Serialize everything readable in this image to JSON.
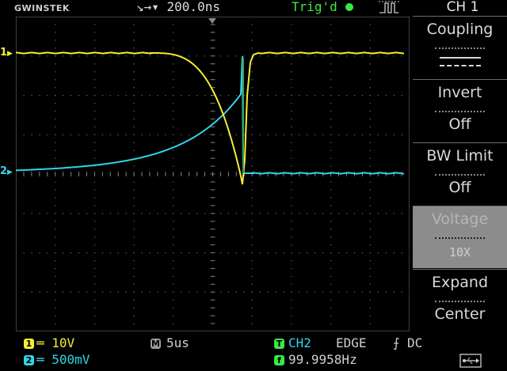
{
  "topbar": {
    "brand": "GWINSTEK",
    "timebase_label": "↘→▾ 200.0ns",
    "trigger_status": "Trig'd",
    "channel_title": "CH 1"
  },
  "screen": {
    "ch1_marker": "1",
    "ch2_marker": "2",
    "trigger_level_marker": "◂"
  },
  "menu": {
    "items": [
      {
        "title": "Coupling",
        "value": "DC"
      },
      {
        "title": "Invert",
        "value": "Off"
      },
      {
        "title": "BW Limit",
        "value": "Off"
      },
      {
        "title": "Voltage",
        "value": "10X"
      },
      {
        "title": "Expand",
        "value": "Center"
      }
    ]
  },
  "bottom": {
    "ch1_badge": "1",
    "ch1_scale": "═ 10V",
    "ch2_badge": "2",
    "ch2_scale": "═ 500mV",
    "timebase_badge": "M",
    "timebase_scale": "5us",
    "trigger_badge": "T",
    "trigger_source": "CH2",
    "trigger_type": "EDGE",
    "trigger_coupling": "⨍ DC",
    "freq_badge": "f",
    "frequency": "99.9958Hz",
    "usb_icon": "usb-icon"
  },
  "colors": {
    "ch1": "#f5ee35",
    "ch2": "#31d4e6",
    "trigger": "#39e84a",
    "menu_disabled": "#8c8c8c",
    "grid": "#5a5a5a"
  }
}
